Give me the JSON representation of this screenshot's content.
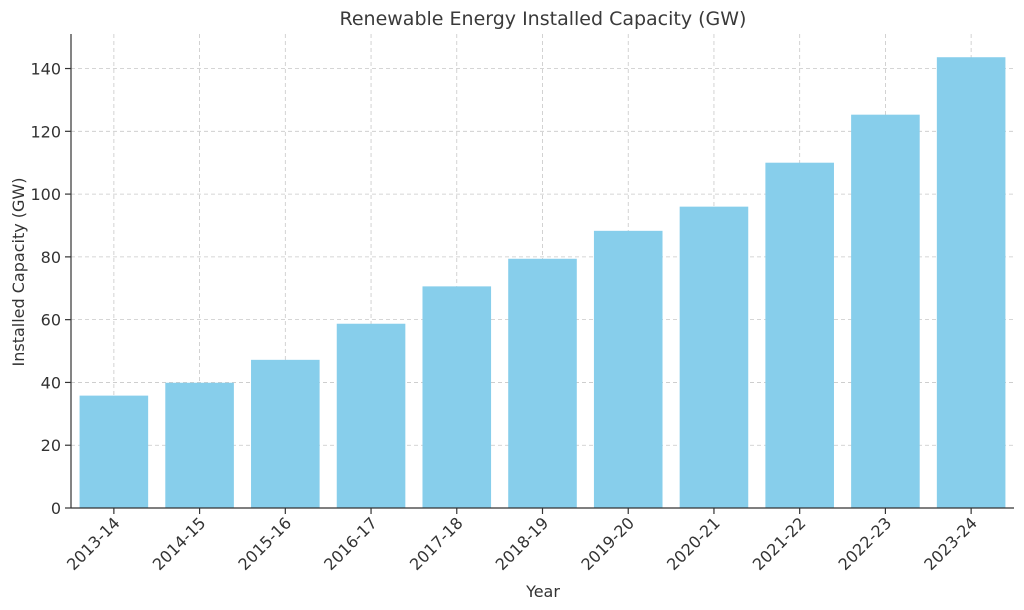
{
  "chart_data": {
    "type": "bar",
    "title": "Renewable Energy Installed Capacity (GW)",
    "xlabel": "Year",
    "ylabel": "Installed Capacity (GW)",
    "categories": [
      "2013-14",
      "2014-15",
      "2015-16",
      "2016-17",
      "2017-18",
      "2018-19",
      "2019-20",
      "2020-21",
      "2021-22",
      "2022-23",
      "2023-24"
    ],
    "values": [
      35.8,
      39.9,
      47.2,
      58.7,
      70.6,
      79.4,
      88.3,
      96.0,
      110.0,
      125.3,
      143.6
    ],
    "ylim": [
      0,
      151
    ],
    "yticks": [
      "0",
      "20",
      "40",
      "60",
      "80",
      "100",
      "120",
      "140"
    ],
    "grid": true,
    "bar_color": "#87ceeb"
  }
}
